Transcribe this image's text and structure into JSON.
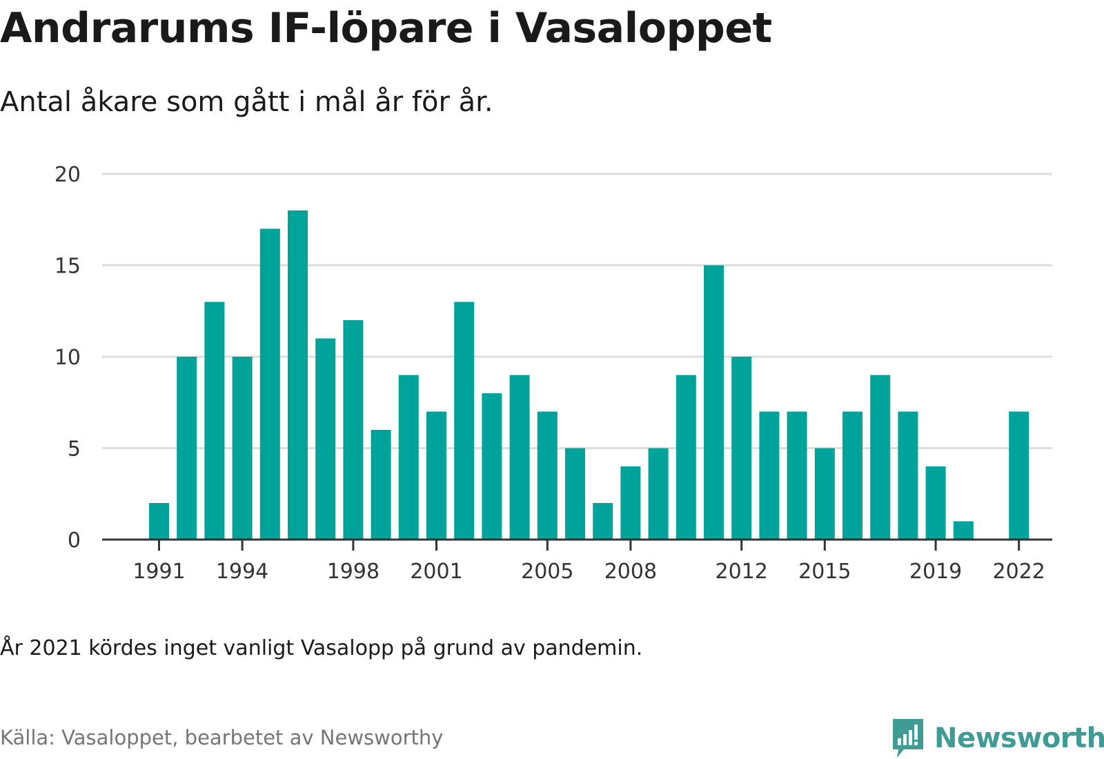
{
  "title": "Andrarums IF-löpare i Vasaloppet",
  "subtitle": "Antal åkare som gått i mål år för år.",
  "note": "År 2021 kördes inget vanligt Vasalopp på grund av pandemin.",
  "source": "Källa: Vasaloppet, bearbetet av Newsworthy",
  "brand": {
    "name": "Newsworthy",
    "color": "#3f9b94",
    "icon": "bar-chart-speech-bubble-icon"
  },
  "colors": {
    "bar": "#00a39a",
    "grid": "#dddddd",
    "axis": "#333333"
  },
  "chart_data": {
    "type": "bar",
    "title": "Andrarums IF-löpare i Vasaloppet",
    "subtitle": "Antal åkare som gått i mål år för år.",
    "x": [
      1991,
      1992,
      1993,
      1994,
      1995,
      1996,
      1997,
      1998,
      1999,
      2000,
      2001,
      2002,
      2003,
      2004,
      2005,
      2006,
      2007,
      2008,
      2009,
      2010,
      2011,
      2012,
      2013,
      2014,
      2015,
      2016,
      2017,
      2018,
      2019,
      2020,
      2021,
      2022
    ],
    "values": [
      2,
      10,
      13,
      10,
      17,
      18,
      11,
      12,
      6,
      9,
      7,
      13,
      8,
      9,
      7,
      5,
      2,
      4,
      5,
      9,
      15,
      10,
      7,
      7,
      5,
      7,
      9,
      7,
      4,
      1,
      null,
      7
    ],
    "ylim": [
      0,
      20
    ],
    "yticks": [
      0,
      5,
      10,
      15,
      20
    ],
    "xticks": [
      1991,
      1994,
      1998,
      2001,
      2005,
      2008,
      2012,
      2015,
      2019,
      2022
    ],
    "xlabel": "",
    "ylabel": "",
    "grid": "horizontal"
  }
}
